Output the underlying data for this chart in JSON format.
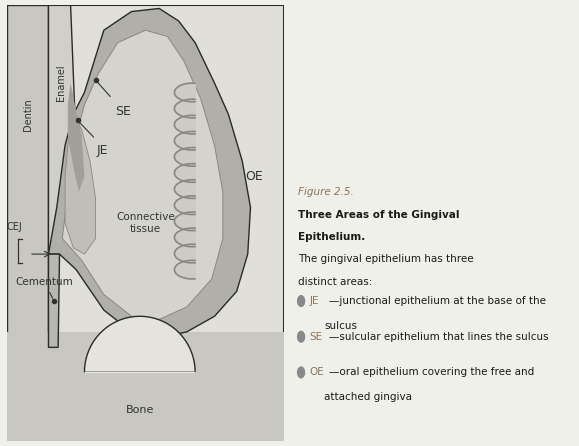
{
  "fig_width": 5.79,
  "fig_height": 4.46,
  "dpi": 100,
  "colors": {
    "bg": "#f0f0eb",
    "panel_bg": "#e0e0d8",
    "dentin": "#d0d0c8",
    "enamel": "#c0c0b8",
    "gingiva_dark": "#a8a8a0",
    "gingiva_mid": "#c0c0b8",
    "gingiva_light": "#d8d8d0",
    "connective": "#dcdcd4",
    "bone_bg": "#d4d4cc",
    "bone_marrow": "#e8e8e0",
    "outline": "#2a2a2a",
    "text": "#2a2a2a",
    "bullet_gray": "#999999"
  },
  "caption_italic": "Figure 2.5.",
  "caption_bold1": "Three Areas of the Gingival",
  "caption_bold2": "Epithelium.",
  "caption_normal1": " The gingival epithelium has three",
  "caption_normal2": "distinct areas:",
  "bullets": [
    {
      "label": "JE",
      "dash": "—",
      "text": "junctional epithelium at the base of the"
    },
    {
      "label": "SE",
      "dash": "—",
      "text": "sulcular epithelium that lines the sulcus"
    },
    {
      "label": "OE",
      "dash": "—",
      "text": "oral epithelium covering the free and"
    }
  ],
  "bullet_line2_1": "sulcus",
  "bullet_line2_3": "attached gingiva"
}
